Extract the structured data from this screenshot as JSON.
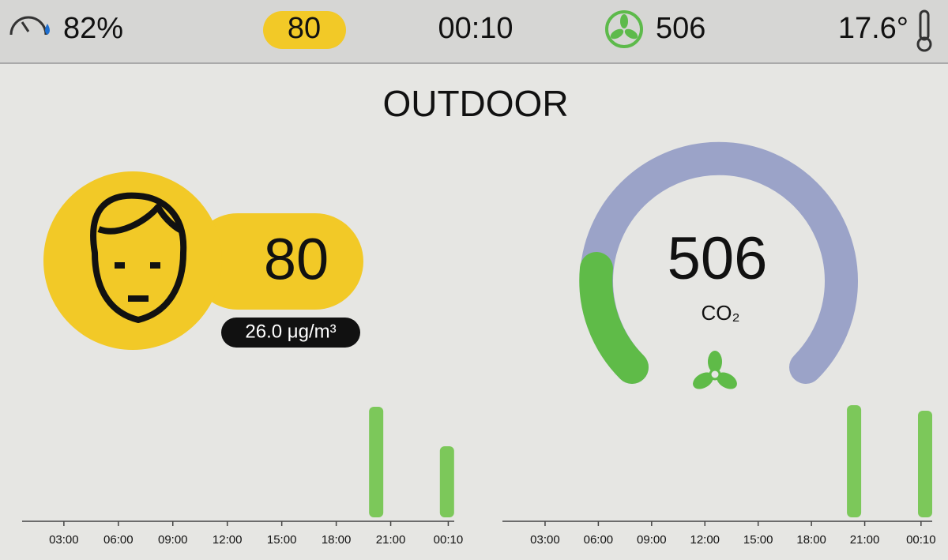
{
  "status_bar": {
    "humidity": "82%",
    "aqi": "80",
    "time": "00:10",
    "co2": "506",
    "temperature": "17.6°"
  },
  "header": {
    "title": "OUTDOOR"
  },
  "pm_panel": {
    "index": "80",
    "concentration": "26.0 μg/m³"
  },
  "co2_panel": {
    "value": "506",
    "label": "CO₂"
  },
  "chart_data": [
    {
      "type": "bar",
      "x": [
        20.2,
        24.1
      ],
      "values": [
        140,
        90
      ],
      "color": "#7cc85a",
      "xlim": [
        0.7,
        24.5
      ],
      "ylim": [
        0,
        150
      ],
      "xticks": [
        {
          "value": 3,
          "label": "03:00"
        },
        {
          "value": 6,
          "label": "06:00"
        },
        {
          "value": 9,
          "label": "09:00"
        },
        {
          "value": 12,
          "label": "12:00"
        },
        {
          "value": 15,
          "label": "15:00"
        },
        {
          "value": 18,
          "label": "18:00"
        },
        {
          "value": 21,
          "label": "21:00"
        },
        {
          "value": 24.17,
          "label": "00:10"
        }
      ]
    },
    {
      "type": "bar",
      "x": [
        20.4,
        24.4
      ],
      "values": [
        142,
        135
      ],
      "color": "#7cc85a",
      "xlim": [
        0.6,
        24.8
      ],
      "ylim": [
        0,
        150
      ],
      "xticks": [
        {
          "value": 3,
          "label": "03:00"
        },
        {
          "value": 6,
          "label": "06:00"
        },
        {
          "value": 9,
          "label": "09:00"
        },
        {
          "value": 12,
          "label": "12:00"
        },
        {
          "value": 15,
          "label": "15:00"
        },
        {
          "value": 18,
          "label": "18:00"
        },
        {
          "value": 21,
          "label": "21:00"
        },
        {
          "value": 24.17,
          "label": "00:10"
        }
      ]
    }
  ]
}
